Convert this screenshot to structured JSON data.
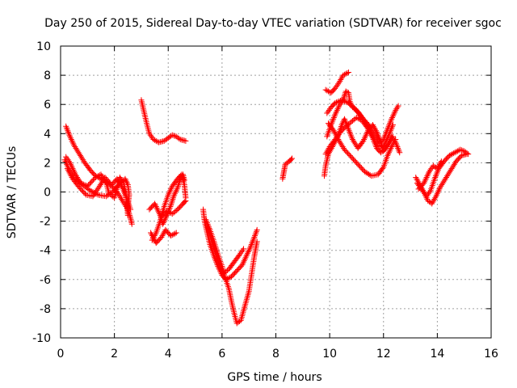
{
  "chart_data": {
    "type": "scatter",
    "title": "Day 250 of 2015, Sidereal Day-to-day VTEC variation (SDTVAR) for receiver sgoc",
    "xlabel": "GPS time / hours",
    "ylabel": "SDTVAR / TECUs",
    "xlim": [
      0,
      16
    ],
    "ylim": [
      -10,
      10
    ],
    "xticks": [
      "0",
      "2",
      "4",
      "6",
      "8",
      "10",
      "12",
      "14",
      "16"
    ],
    "yticks": [
      "-10",
      "-8",
      "-6",
      "-4",
      "-2",
      "0",
      "2",
      "4",
      "6",
      "8",
      "10"
    ],
    "grid": true,
    "marker": "+",
    "color": "#ff0000",
    "series": [
      {
        "points": [
          [
            0.2,
            4.5
          ],
          [
            0.35,
            3.8
          ],
          [
            0.5,
            3.2
          ],
          [
            0.7,
            2.6
          ],
          [
            0.9,
            2.0
          ],
          [
            1.1,
            1.5
          ],
          [
            1.3,
            1.1
          ],
          [
            1.6,
            0.8
          ],
          [
            1.9,
            0.4
          ],
          [
            2.1,
            0.0
          ],
          [
            2.3,
            -0.6
          ],
          [
            2.5,
            -1.2
          ],
          [
            2.6,
            -1.8
          ],
          [
            2.65,
            -2.2
          ]
        ]
      },
      {
        "points": [
          [
            0.15,
            2.2
          ],
          [
            0.3,
            1.6
          ],
          [
            0.5,
            1.0
          ],
          [
            0.8,
            0.5
          ],
          [
            1.1,
            0.1
          ],
          [
            1.4,
            -0.2
          ],
          [
            1.7,
            -0.3
          ],
          [
            2.0,
            0.1
          ],
          [
            2.2,
            0.6
          ],
          [
            2.4,
            0.9
          ],
          [
            2.5,
            0.5
          ],
          [
            2.55,
            -0.2
          ],
          [
            2.5,
            -1.0
          ]
        ]
      },
      {
        "points": [
          [
            0.2,
            2.4
          ],
          [
            0.35,
            2.0
          ],
          [
            0.55,
            1.2
          ],
          [
            0.75,
            0.6
          ],
          [
            1.0,
            0.4
          ],
          [
            1.3,
            1.0
          ],
          [
            1.5,
            1.2
          ],
          [
            1.7,
            0.6
          ],
          [
            1.8,
            -0.1
          ],
          [
            2.0,
            -0.4
          ],
          [
            2.1,
            0.3
          ],
          [
            2.2,
            1.0
          ],
          [
            2.35,
            0.6
          ],
          [
            2.45,
            -0.5
          ],
          [
            2.5,
            -1.6
          ]
        ]
      },
      {
        "points": [
          [
            0.25,
            1.6
          ],
          [
            0.45,
            0.9
          ],
          [
            0.7,
            0.3
          ],
          [
            0.95,
            -0.2
          ],
          [
            1.2,
            -0.3
          ],
          [
            1.45,
            0.4
          ],
          [
            1.65,
            1.0
          ],
          [
            1.9,
            0.5
          ],
          [
            2.1,
            0.9
          ],
          [
            2.3,
            0.3
          ],
          [
            2.45,
            -0.4
          ],
          [
            2.6,
            -1.2
          ]
        ]
      },
      {
        "points": [
          [
            3.0,
            6.3
          ],
          [
            3.1,
            5.5
          ],
          [
            3.2,
            4.7
          ],
          [
            3.3,
            4.0
          ],
          [
            3.45,
            3.6
          ],
          [
            3.65,
            3.4
          ],
          [
            3.85,
            3.5
          ],
          [
            4.0,
            3.7
          ],
          [
            4.15,
            3.9
          ],
          [
            4.3,
            3.8
          ],
          [
            4.45,
            3.6
          ],
          [
            4.65,
            3.5
          ]
        ]
      },
      {
        "points": [
          [
            3.3,
            -1.2
          ],
          [
            3.5,
            -0.8
          ],
          [
            3.7,
            -1.6
          ],
          [
            3.8,
            -2.2
          ],
          [
            3.95,
            -1.6
          ],
          [
            4.1,
            -0.9
          ],
          [
            4.2,
            -0.3
          ],
          [
            4.35,
            0.3
          ],
          [
            4.45,
            0.9
          ],
          [
            4.55,
            1.2
          ],
          [
            4.6,
            0.8
          ]
        ]
      },
      {
        "points": [
          [
            3.35,
            -2.8
          ],
          [
            3.55,
            -3.5
          ],
          [
            3.75,
            -3.1
          ],
          [
            3.9,
            -2.6
          ],
          [
            4.1,
            -3.0
          ],
          [
            4.3,
            -2.8
          ]
        ]
      },
      {
        "points": [
          [
            3.4,
            -3.3
          ],
          [
            3.55,
            -2.8
          ],
          [
            3.7,
            -2.0
          ],
          [
            3.85,
            -1.0
          ],
          [
            4.0,
            -0.2
          ],
          [
            4.15,
            0.4
          ],
          [
            4.35,
            0.9
          ],
          [
            4.5,
            1.2
          ],
          [
            4.6,
            0.5
          ],
          [
            4.65,
            -0.4
          ]
        ]
      },
      {
        "points": [
          [
            3.75,
            -1.7
          ],
          [
            3.95,
            -1.3
          ],
          [
            4.15,
            -1.5
          ],
          [
            4.35,
            -1.2
          ],
          [
            4.55,
            -0.8
          ],
          [
            4.65,
            -0.6
          ]
        ]
      },
      {
        "points": [
          [
            5.3,
            -1.2
          ],
          [
            5.35,
            -2.0
          ],
          [
            5.45,
            -2.8
          ],
          [
            5.55,
            -3.6
          ],
          [
            5.7,
            -4.4
          ],
          [
            5.85,
            -5.1
          ],
          [
            6.0,
            -5.7
          ],
          [
            6.15,
            -6.0
          ],
          [
            6.35,
            -5.8
          ],
          [
            6.55,
            -5.4
          ],
          [
            6.75,
            -5.0
          ],
          [
            6.9,
            -4.4
          ],
          [
            7.05,
            -3.8
          ],
          [
            7.2,
            -3.1
          ],
          [
            7.3,
            -2.6
          ]
        ]
      },
      {
        "points": [
          [
            5.4,
            -1.9
          ],
          [
            5.55,
            -2.6
          ],
          [
            5.7,
            -3.4
          ],
          [
            5.85,
            -4.3
          ],
          [
            6.0,
            -5.1
          ],
          [
            6.1,
            -5.8
          ],
          [
            6.25,
            -6.6
          ],
          [
            6.35,
            -7.5
          ],
          [
            6.45,
            -8.3
          ],
          [
            6.55,
            -9.0
          ],
          [
            6.7,
            -8.8
          ],
          [
            6.85,
            -7.8
          ],
          [
            7.0,
            -6.8
          ],
          [
            7.1,
            -5.6
          ],
          [
            7.2,
            -4.4
          ],
          [
            7.3,
            -3.4
          ]
        ]
      },
      {
        "points": [
          [
            5.45,
            -2.3
          ],
          [
            5.6,
            -3.2
          ],
          [
            5.75,
            -4.1
          ],
          [
            5.9,
            -5.0
          ],
          [
            6.05,
            -5.6
          ],
          [
            6.25,
            -5.3
          ],
          [
            6.45,
            -4.8
          ],
          [
            6.65,
            -4.3
          ],
          [
            6.8,
            -3.9
          ]
        ]
      },
      {
        "points": [
          [
            8.25,
            0.9
          ],
          [
            8.3,
            1.4
          ],
          [
            8.35,
            1.9
          ],
          [
            8.5,
            2.1
          ],
          [
            8.6,
            2.3
          ]
        ]
      },
      {
        "points": [
          [
            9.8,
            1.1
          ],
          [
            9.85,
            1.8
          ],
          [
            9.95,
            2.6
          ],
          [
            10.1,
            3.1
          ],
          [
            10.3,
            3.8
          ],
          [
            10.45,
            4.6
          ],
          [
            10.55,
            5.0
          ],
          [
            10.7,
            4.3
          ],
          [
            10.85,
            3.6
          ],
          [
            11.05,
            3.0
          ],
          [
            11.25,
            3.5
          ],
          [
            11.45,
            4.3
          ],
          [
            11.6,
            4.6
          ],
          [
            11.75,
            4.1
          ],
          [
            11.9,
            3.4
          ],
          [
            12.0,
            2.8
          ],
          [
            12.15,
            3.2
          ],
          [
            12.3,
            3.8
          ],
          [
            12.45,
            3.4
          ],
          [
            12.6,
            2.7
          ]
        ]
      },
      {
        "points": [
          [
            9.85,
            2.6
          ],
          [
            10.0,
            3.1
          ],
          [
            10.2,
            3.6
          ],
          [
            10.4,
            4.1
          ],
          [
            10.6,
            4.5
          ],
          [
            10.8,
            4.8
          ],
          [
            11.0,
            5.1
          ],
          [
            11.2,
            4.9
          ],
          [
            11.4,
            4.4
          ],
          [
            11.6,
            3.7
          ],
          [
            11.75,
            3.0
          ],
          [
            11.9,
            2.7
          ],
          [
            12.05,
            2.9
          ],
          [
            12.2,
            3.3
          ],
          [
            12.35,
            3.8
          ]
        ]
      },
      {
        "points": [
          [
            9.9,
            3.8
          ],
          [
            10.05,
            4.6
          ],
          [
            10.2,
            5.3
          ],
          [
            10.35,
            5.9
          ],
          [
            10.5,
            6.3
          ],
          [
            10.6,
            6.9
          ],
          [
            10.7,
            6.8
          ],
          [
            10.75,
            6.2
          ],
          [
            10.85,
            5.8
          ],
          [
            11.05,
            5.5
          ],
          [
            11.25,
            5.0
          ],
          [
            11.45,
            4.4
          ],
          [
            11.6,
            3.8
          ],
          [
            11.8,
            3.2
          ],
          [
            12.0,
            3.1
          ],
          [
            12.2,
            3.9
          ],
          [
            12.35,
            4.6
          ]
        ]
      },
      {
        "points": [
          [
            9.85,
            7.0
          ],
          [
            10.05,
            6.8
          ],
          [
            10.2,
            7.1
          ],
          [
            10.35,
            7.5
          ],
          [
            10.5,
            8.0
          ],
          [
            10.7,
            8.2
          ]
        ]
      },
      {
        "points": [
          [
            9.9,
            5.4
          ],
          [
            10.05,
            5.8
          ],
          [
            10.2,
            6.1
          ],
          [
            10.45,
            6.3
          ],
          [
            10.7,
            6.1
          ],
          [
            10.95,
            5.7
          ],
          [
            11.2,
            5.1
          ],
          [
            11.45,
            4.6
          ],
          [
            11.65,
            4.0
          ],
          [
            11.85,
            3.4
          ],
          [
            12.0,
            3.6
          ],
          [
            12.15,
            4.3
          ],
          [
            12.3,
            5.0
          ],
          [
            12.45,
            5.6
          ],
          [
            12.55,
            5.9
          ]
        ]
      },
      {
        "points": [
          [
            9.95,
            4.7
          ],
          [
            10.15,
            4.2
          ],
          [
            10.35,
            3.5
          ],
          [
            10.55,
            2.9
          ],
          [
            10.8,
            2.4
          ],
          [
            11.05,
            1.9
          ],
          [
            11.3,
            1.4
          ],
          [
            11.55,
            1.1
          ],
          [
            11.8,
            1.2
          ],
          [
            12.0,
            1.7
          ],
          [
            12.15,
            2.5
          ],
          [
            12.3,
            3.1
          ],
          [
            12.45,
            3.6
          ]
        ]
      },
      {
        "points": [
          [
            13.2,
            1.0
          ],
          [
            13.35,
            0.5
          ],
          [
            13.5,
            0.0
          ],
          [
            13.65,
            -0.6
          ],
          [
            13.8,
            -0.8
          ],
          [
            13.95,
            -0.3
          ],
          [
            14.1,
            0.3
          ],
          [
            14.3,
            0.9
          ],
          [
            14.5,
            1.5
          ],
          [
            14.7,
            2.1
          ],
          [
            14.9,
            2.5
          ],
          [
            15.1,
            2.6
          ]
        ]
      },
      {
        "points": [
          [
            13.25,
            0.6
          ],
          [
            13.45,
            0.1
          ],
          [
            13.6,
            -0.3
          ],
          [
            13.75,
            0.1
          ],
          [
            13.9,
            0.9
          ],
          [
            14.05,
            1.6
          ],
          [
            14.25,
            2.1
          ],
          [
            14.45,
            2.5
          ],
          [
            14.65,
            2.7
          ],
          [
            14.85,
            2.9
          ],
          [
            15.0,
            2.8
          ],
          [
            15.15,
            2.6
          ]
        ]
      },
      {
        "points": [
          [
            13.3,
            0.2
          ],
          [
            13.5,
            0.6
          ],
          [
            13.7,
            1.4
          ],
          [
            13.85,
            1.8
          ],
          [
            14.0,
            1.6
          ],
          [
            14.15,
            2.1
          ]
        ]
      }
    ]
  }
}
